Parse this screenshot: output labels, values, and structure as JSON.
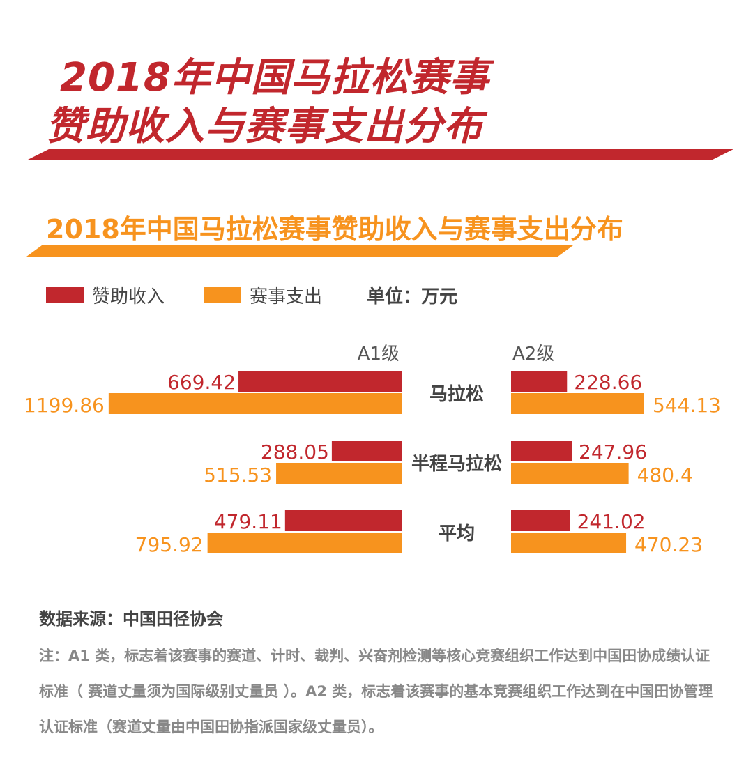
{
  "header": {
    "title_line1": "2018年中国马拉松赛事",
    "title_line2": "赞助收入与赛事支出分布",
    "subtitle": "2018年中国马拉松赛事赞助收入与赛事支出分布"
  },
  "legend": {
    "sponsor": "赞助收入",
    "expense": "赛事支出",
    "unit": "单位：万元"
  },
  "colors": {
    "sponsor": "#c1272d",
    "expense": "#f7931e"
  },
  "chart_data": {
    "type": "bar",
    "title": "2018年中国马拉松赛事赞助收入与赛事支出分布",
    "unit": "单位：万元",
    "groups": [
      "A1级",
      "A2级"
    ],
    "categories": [
      "马拉松",
      "半程马拉松",
      "平均"
    ],
    "series": [
      {
        "name": "赞助收入",
        "group": "A1级",
        "values": [
          669.42,
          288.05,
          479.11
        ]
      },
      {
        "name": "赛事支出",
        "group": "A1级",
        "values": [
          1199.86,
          515.53,
          795.92
        ]
      },
      {
        "name": "赞助收入",
        "group": "A2级",
        "values": [
          228.66,
          247.96,
          241.02
        ]
      },
      {
        "name": "赛事支出",
        "group": "A2级",
        "values": [
          544.13,
          480.4,
          470.23
        ]
      }
    ],
    "labels": {
      "A1级": {
        "赞助收入": [
          "669.42",
          "288.05",
          "479.11"
        ],
        "赛事支出": [
          "1199.86",
          "515.53",
          "795.92"
        ]
      },
      "A2级": {
        "赞助收入": [
          "228.66",
          "247.96",
          "241.02"
        ],
        "赛事支出": [
          "544.13",
          "480.4",
          "470.23"
        ]
      }
    },
    "legend_position": "top-left",
    "grid": false
  },
  "footer": {
    "source": "数据来源：中国田径协会",
    "note": "注：A1 类，标志着该赛事的赛道、计时、裁判、兴奋剂检测等核心竞赛组织工作达到中国田协成绩认证标准（ 赛道丈量须为国际级别丈量员 ）。A2 类，标志着该赛事的基本竞赛组织工作达到在中国田协管理认证标准（赛道丈量由中国田协指派国家级丈量员）。"
  }
}
